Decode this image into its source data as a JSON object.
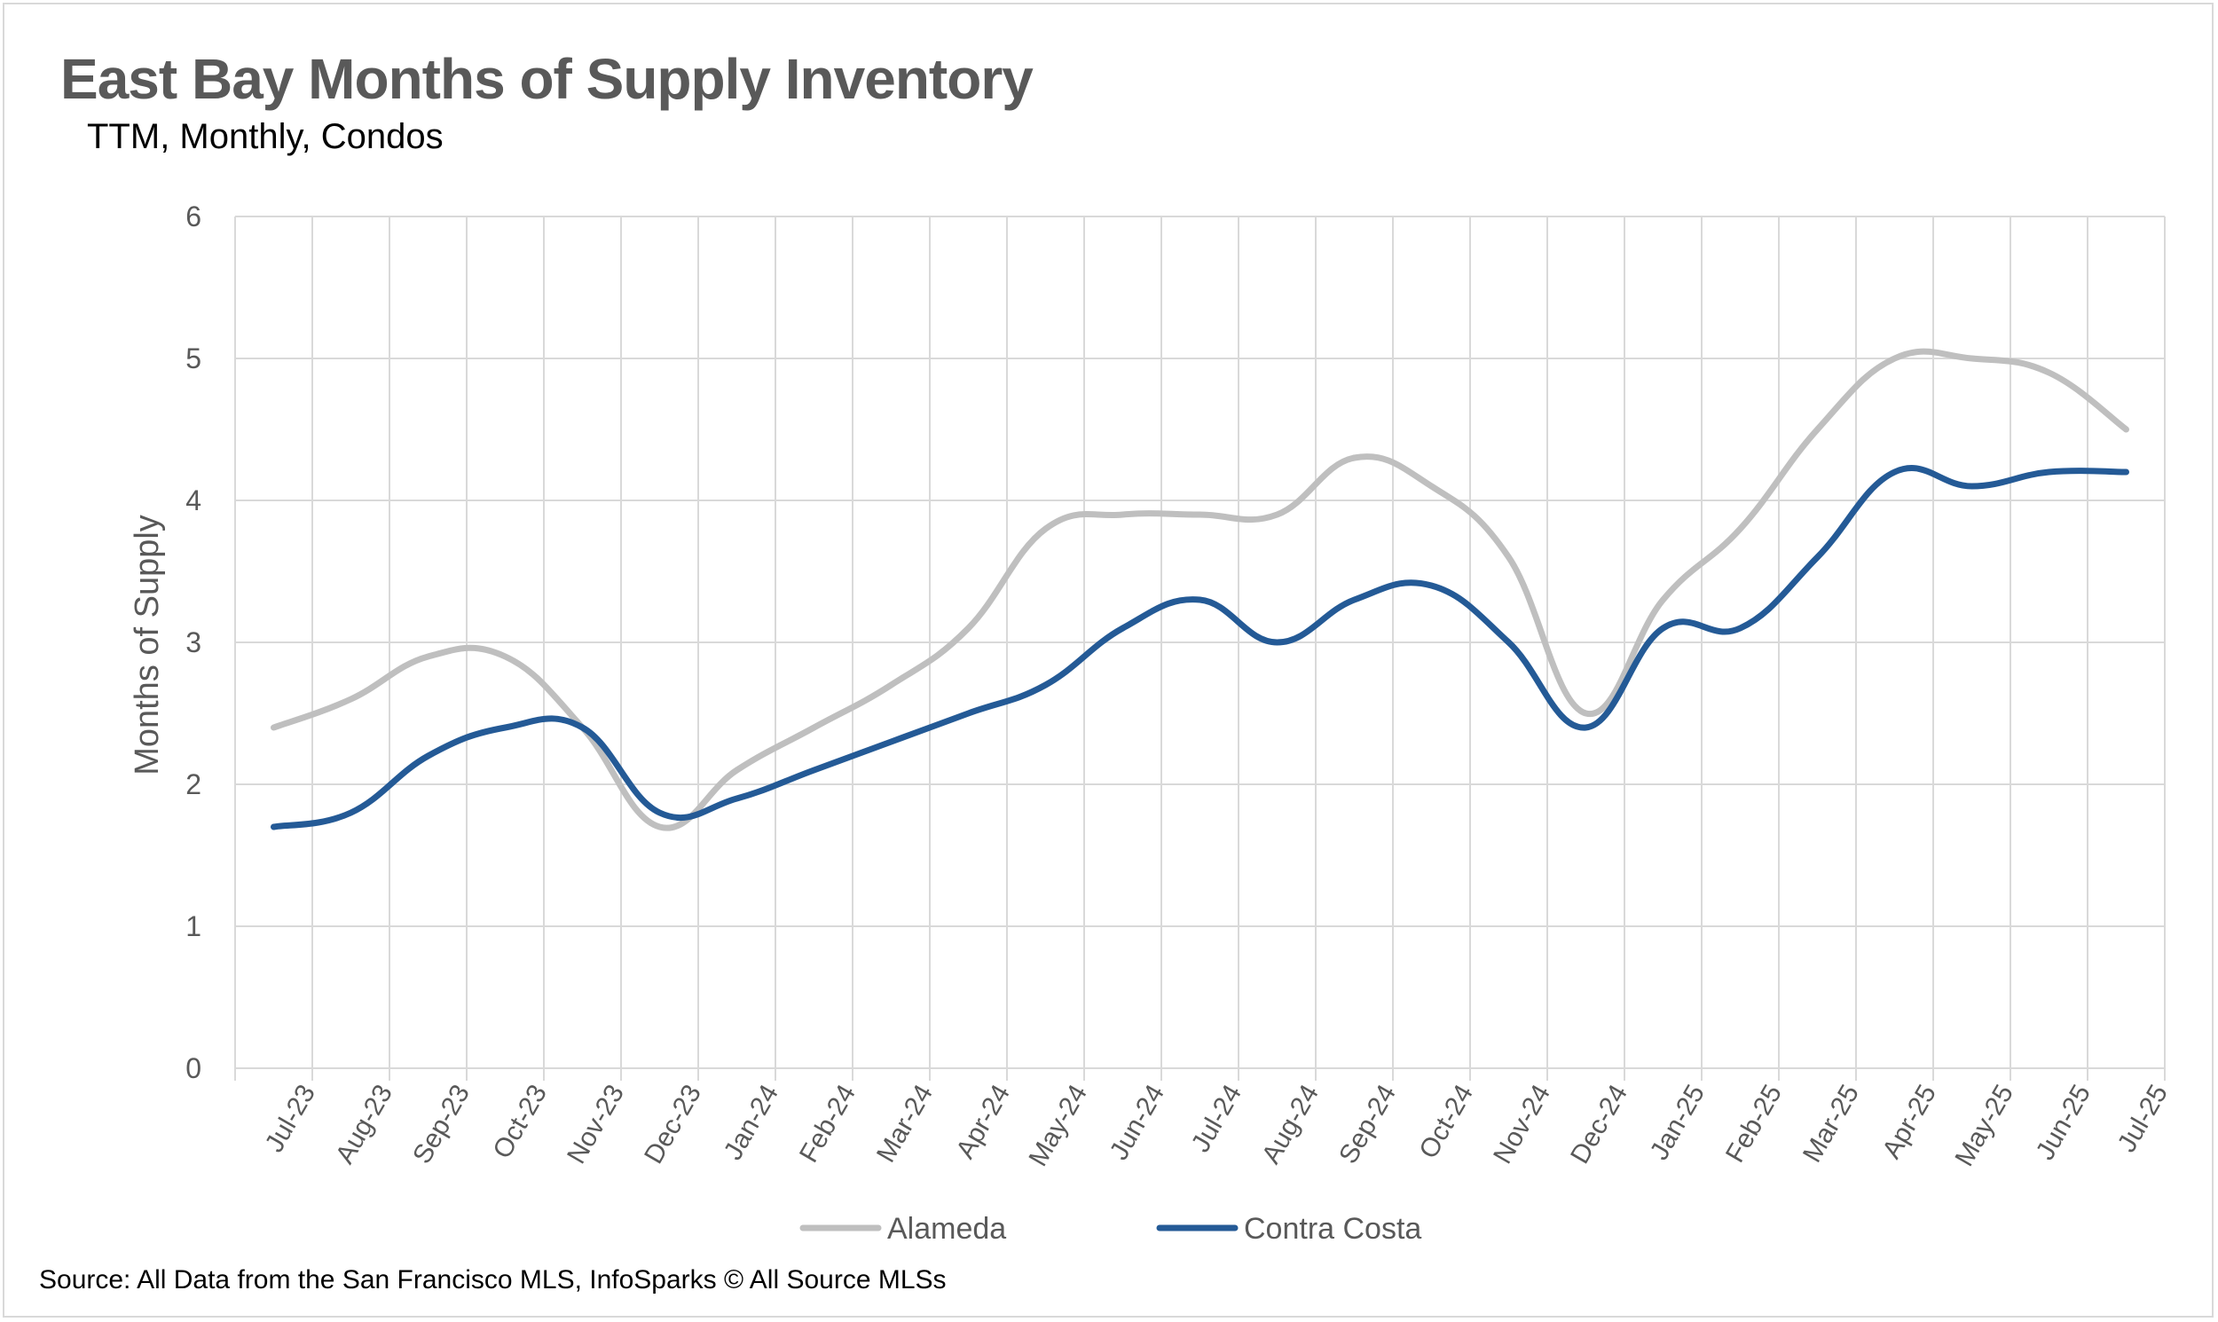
{
  "chart_data": {
    "type": "line",
    "title": "East Bay Months of Supply Inventory",
    "subtitle": "TTM, Monthly, Condos",
    "ylabel": "Months of Supply",
    "xlabel": "",
    "ylim": [
      0,
      6
    ],
    "yticks": [
      "0",
      "1",
      "2",
      "3",
      "4",
      "5",
      "6"
    ],
    "grid": true,
    "legend_position": "bottom",
    "categories": [
      "Jul-23",
      "Aug-23",
      "Sep-23",
      "Oct-23",
      "Nov-23",
      "Dec-23",
      "Jan-24",
      "Feb-24",
      "Mar-24",
      "Apr-24",
      "May-24",
      "Jun-24",
      "Jul-24",
      "Aug-24",
      "Sep-24",
      "Oct-24",
      "Nov-24",
      "Dec-24",
      "Jan-25",
      "Feb-25",
      "Mar-25",
      "Apr-25",
      "May-25",
      "Jun-25",
      "Jul-25"
    ],
    "series": [
      {
        "name": "Alameda",
        "color": "#bfbfbf",
        "values": [
          2.4,
          2.6,
          2.9,
          2.9,
          2.4,
          1.7,
          2.1,
          2.4,
          2.7,
          3.1,
          3.8,
          3.9,
          3.9,
          3.9,
          4.3,
          4.1,
          3.6,
          2.5,
          3.3,
          3.8,
          4.5,
          5.0,
          5.0,
          4.9,
          4.5
        ]
      },
      {
        "name": "Contra Costa",
        "color": "#245a96",
        "values": [
          1.7,
          1.8,
          2.2,
          2.4,
          2.4,
          1.8,
          1.9,
          2.1,
          2.3,
          2.5,
          2.7,
          3.1,
          3.3,
          3.0,
          3.3,
          3.4,
          3.0,
          2.4,
          3.1,
          3.1,
          3.6,
          4.2,
          4.1,
          4.2,
          4.2
        ]
      }
    ]
  },
  "source": "Source: All Data from the San Francisco MLS, InfoSparks © All Source MLSs"
}
